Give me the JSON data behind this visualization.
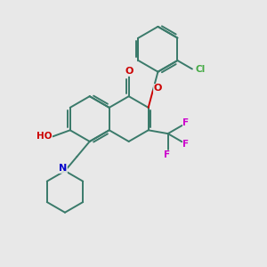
{
  "background_color": "#e8e8e8",
  "bond_color": "#3a7a6a",
  "figsize": [
    3.0,
    3.0
  ],
  "dpi": 100,
  "atom_colors": {
    "O": "#cc0000",
    "N": "#0000cc",
    "F": "#cc00cc",
    "Cl": "#44aa44"
  }
}
